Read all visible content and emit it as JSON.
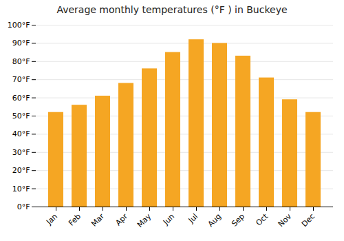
{
  "chart_data": {
    "type": "bar",
    "title": "Average monthly temperatures (°F ) in Buckeye",
    "categories": [
      "Jan",
      "Feb",
      "Mar",
      "Apr",
      "May",
      "Jun",
      "Jul",
      "Aug",
      "Sep",
      "Oct",
      "Nov",
      "Dec"
    ],
    "values": [
      52,
      56,
      61,
      68,
      76,
      85,
      92,
      90,
      83,
      71,
      59,
      52
    ],
    "color": "#F5A623",
    "ylim": [
      0,
      100
    ],
    "yticks": [
      {
        "value": 0,
        "label": "0°F"
      },
      {
        "value": 10,
        "label": "10°F"
      },
      {
        "value": 20,
        "label": "20°F"
      },
      {
        "value": 30,
        "label": "30°F"
      },
      {
        "value": 40,
        "label": "40°F"
      },
      {
        "value": 50,
        "label": "50°F"
      },
      {
        "value": 60,
        "label": "60°F"
      },
      {
        "value": 70,
        "label": "70°F"
      },
      {
        "value": 80,
        "label": "80°F"
      },
      {
        "value": 90,
        "label": "90°F"
      },
      {
        "value": 100,
        "label": "100°F"
      }
    ],
    "grid": true
  }
}
